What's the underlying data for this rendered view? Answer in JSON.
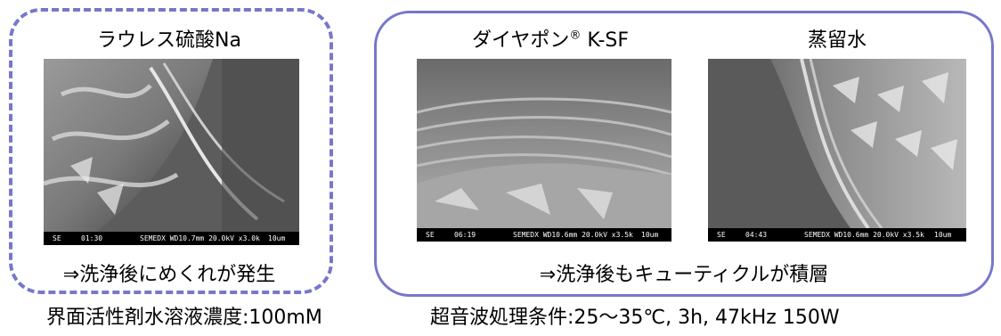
{
  "panels": {
    "left": {
      "title": "ラウレス硫酸Na",
      "conclusion": "⇒洗浄後にめくれが発生",
      "image": {
        "mode": "SE",
        "time": "01:30",
        "params": "SEMEDX WD10.7mm 20.0kV x3.0k",
        "scale": "10um"
      }
    },
    "right": {
      "conclusion": "⇒洗浄後もキューティクルが積層",
      "items": [
        {
          "title": "ダイヤポン",
          "title_sup": "®",
          "title_suffix": " K-SF",
          "image": {
            "mode": "SE",
            "time": "06:19",
            "params": "SEMEDX WD10.6mm 20.0kV x3.5k",
            "scale": "10um"
          }
        },
        {
          "title": "蒸留水",
          "image": {
            "mode": "SE",
            "time": "04:43",
            "params": "SEMEDX WD10.6mm 20.0kV x3.5k",
            "scale": "10um"
          }
        }
      ]
    }
  },
  "footnotes": {
    "concentration": "界面活性剤水溶液濃度:100mM",
    "conditions": "超音波処理条件:25～35℃, 3h, 47kHz 150W"
  },
  "colors": {
    "border": "#7777cc"
  }
}
